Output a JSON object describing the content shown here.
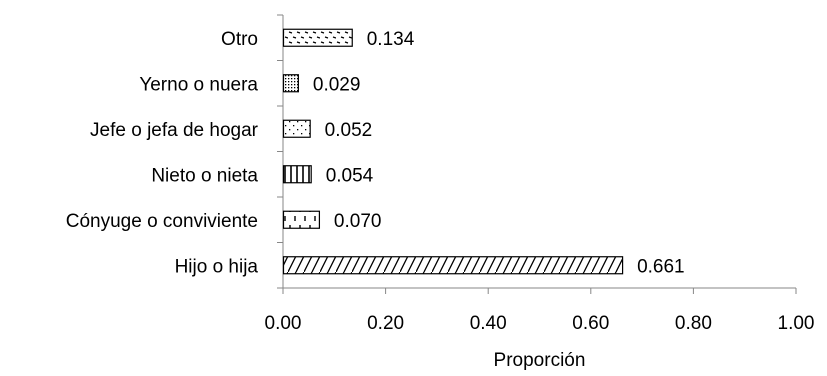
{
  "chart_data": {
    "type": "bar",
    "orientation": "horizontal",
    "categories": [
      "Hijo o hija",
      "Cónyuge o conviviente",
      "Nieto o nieta",
      "Jefe o jefa de hogar",
      "Yerno o nuera",
      "Otro"
    ],
    "values": [
      0.661,
      0.07,
      0.054,
      0.052,
      0.029,
      0.134
    ],
    "value_labels": [
      "0.661",
      "0.070",
      "0.054",
      "0.052",
      "0.029",
      "0.134"
    ],
    "fill_patterns": [
      "wide-diagonal-stripes",
      "dashed-vertical",
      "vertical-lines",
      "sparse-dots",
      "dense-dots",
      "dashed-dots"
    ],
    "xlabel": "Proporción",
    "ylabel": "",
    "xlim": [
      0,
      1
    ],
    "x_ticks": [
      "0.00",
      "0.20",
      "0.40",
      "0.60",
      "0.80",
      "1.00"
    ],
    "grid": false,
    "legend": "none",
    "colors": {
      "bar_border": "#000000",
      "pattern": "#000000",
      "axis": "#878787",
      "background": "#ffffff"
    }
  }
}
